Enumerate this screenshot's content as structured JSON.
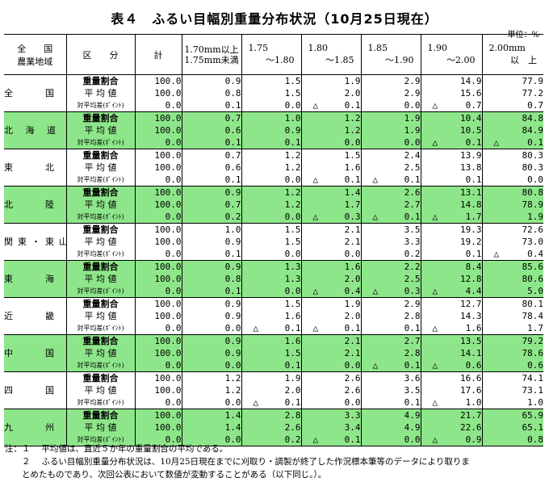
{
  "title": "表４　ふるい目幅別重量分布状況（10月25日現在）",
  "unit": "単位：%",
  "header": {
    "region_top": "全　　国",
    "region_bottom": "農業地域",
    "category": "区　　分",
    "total": "計",
    "c1_top": "1.70mm以上",
    "c1_bottom": "1.75mm未満",
    "c2_top": "1.75",
    "c2_bottom": "～1.80",
    "c3_top": "1.80",
    "c3_bottom": "～1.85",
    "c4_top": "1.85",
    "c4_bottom": "～1.90",
    "c5_top": "1.90",
    "c5_bottom": "～2.00",
    "c6_top": "2.00mm",
    "c6_bottom": "以　上"
  },
  "row_labels": [
    "重量割合",
    "平 均 値",
    "対平均差(ﾎﾟｲﾝﾄ)"
  ],
  "triangle": "△",
  "regions": [
    {
      "name": "全　　国",
      "rows": [
        [
          "100.0",
          "0.9",
          "1.5",
          "1.9",
          "2.9",
          "14.9",
          "77.9"
        ],
        [
          "100.0",
          "0.8",
          "1.5",
          "2.0",
          "2.9",
          "15.6",
          "77.2"
        ],
        [
          "0.0",
          "0.1",
          "0.0",
          "△ 0.1",
          "0.0",
          "△ 0.7",
          "0.7"
        ]
      ]
    },
    {
      "name": "北 海 道",
      "rows": [
        [
          "100.0",
          "0.7",
          "1.0",
          "1.2",
          "1.9",
          "10.4",
          "84.8"
        ],
        [
          "100.0",
          "0.6",
          "0.9",
          "1.2",
          "1.9",
          "10.5",
          "84.9"
        ],
        [
          "0.0",
          "0.1",
          "0.1",
          "0.0",
          "0.0",
          "△ 0.1",
          "△ 0.1"
        ]
      ]
    },
    {
      "name": "東　　北",
      "rows": [
        [
          "100.0",
          "0.7",
          "1.2",
          "1.5",
          "2.4",
          "13.9",
          "80.3"
        ],
        [
          "100.0",
          "0.6",
          "1.2",
          "1.6",
          "2.5",
          "13.8",
          "80.3"
        ],
        [
          "0.0",
          "0.1",
          "0.0",
          "△ 0.1",
          "△ 0.1",
          "0.1",
          "0.0"
        ]
      ]
    },
    {
      "name": "北　　陸",
      "rows": [
        [
          "100.0",
          "0.9",
          "1.2",
          "1.4",
          "2.6",
          "13.1",
          "80.8"
        ],
        [
          "100.0",
          "0.7",
          "1.2",
          "1.7",
          "2.7",
          "14.8",
          "78.9"
        ],
        [
          "0.0",
          "0.2",
          "0.0",
          "△ 0.3",
          "△ 0.1",
          "△ 1.7",
          "1.9"
        ]
      ]
    },
    {
      "name": "関東・東山",
      "rows": [
        [
          "100.0",
          "1.0",
          "1.5",
          "2.1",
          "3.5",
          "19.3",
          "72.6"
        ],
        [
          "100.0",
          "0.9",
          "1.5",
          "2.1",
          "3.3",
          "19.2",
          "73.0"
        ],
        [
          "0.0",
          "0.1",
          "0.0",
          "0.0",
          "0.2",
          "0.1",
          "△ 0.4"
        ]
      ]
    },
    {
      "name": "東　　海",
      "rows": [
        [
          "100.0",
          "0.9",
          "1.3",
          "1.6",
          "2.2",
          "8.4",
          "85.6"
        ],
        [
          "100.0",
          "0.8",
          "1.3",
          "2.0",
          "2.5",
          "12.8",
          "80.6"
        ],
        [
          "0.0",
          "0.1",
          "0.0",
          "△ 0.4",
          "△ 0.3",
          "△ 4.4",
          "5.0"
        ]
      ]
    },
    {
      "name": "近　　畿",
      "rows": [
        [
          "100.0",
          "0.9",
          "1.5",
          "1.9",
          "2.9",
          "12.7",
          "80.1"
        ],
        [
          "100.0",
          "0.9",
          "1.6",
          "2.0",
          "2.8",
          "14.3",
          "78.4"
        ],
        [
          "0.0",
          "0.0",
          "△ 0.1",
          "△ 0.1",
          "0.1",
          "△ 1.6",
          "1.7"
        ]
      ]
    },
    {
      "name": "中　　国",
      "rows": [
        [
          "100.0",
          "0.9",
          "1.6",
          "2.1",
          "2.7",
          "13.5",
          "79.2"
        ],
        [
          "100.0",
          "0.9",
          "1.5",
          "2.1",
          "2.8",
          "14.1",
          "78.6"
        ],
        [
          "0.0",
          "0.0",
          "0.1",
          "0.0",
          "△ 0.1",
          "△ 0.6",
          "0.6"
        ]
      ]
    },
    {
      "name": "四　　国",
      "rows": [
        [
          "100.0",
          "1.2",
          "1.9",
          "2.6",
          "3.6",
          "16.6",
          "74.1"
        ],
        [
          "100.0",
          "1.2",
          "2.0",
          "2.6",
          "3.5",
          "17.6",
          "73.1"
        ],
        [
          "0.0",
          "0.0",
          "△ 0.1",
          "0.0",
          "0.1",
          "△ 1.0",
          "1.0"
        ]
      ]
    },
    {
      "name": "九　　州",
      "rows": [
        [
          "100.0",
          "1.4",
          "2.8",
          "3.3",
          "4.9",
          "21.7",
          "65.9"
        ],
        [
          "100.0",
          "1.4",
          "2.6",
          "3.4",
          "4.9",
          "22.6",
          "65.1"
        ],
        [
          "0.0",
          "0.0",
          "0.2",
          "△ 0.1",
          "0.0",
          "△ 0.9",
          "0.8"
        ]
      ]
    }
  ],
  "notes": [
    "注：１　 平均値は、直近５か年の重量割合の平均である。",
    "　　２　 ふるい目幅別重量分布状況は、10月25日現在までに刈取り・調製が終了した作況標本筆等のデータにより取りま",
    "　　とめたものであり、次回公表において数値が変動することがある（以下同じ。）。"
  ],
  "colors": {
    "highlight": "#8ee68a"
  }
}
